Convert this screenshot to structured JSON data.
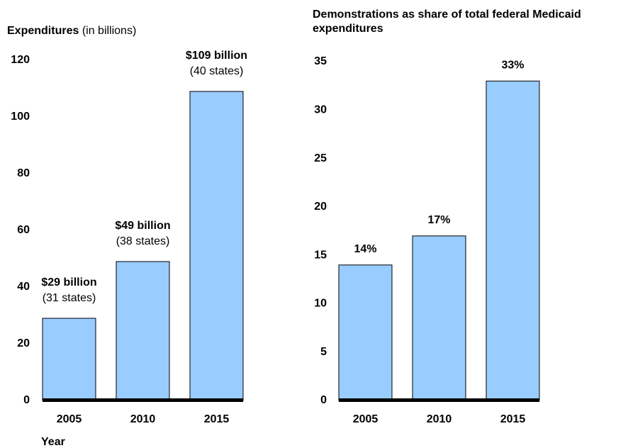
{
  "chart_data": [
    {
      "type": "bar",
      "title": "Expenditures",
      "subtitle": "(in billions)",
      "x_label": "Year",
      "categories": [
        "2005",
        "2010",
        "2015"
      ],
      "values": [
        29,
        49,
        109
      ],
      "value_labels": [
        "$29 billion",
        "$49 billion",
        "$109 billion"
      ],
      "annotations": [
        "(31 states)",
        "(38 states)",
        "(40 states)"
      ],
      "color": "#99ccff",
      "ylim": [
        0,
        120
      ],
      "yticks": [
        0,
        20,
        40,
        60,
        80,
        100,
        120
      ],
      "grid": false
    },
    {
      "type": "bar",
      "title": "Demonstrations as share of total federal Medicaid expenditures",
      "categories": [
        "2005",
        "2010",
        "2015"
      ],
      "values": [
        14,
        17,
        33
      ],
      "value_labels": [
        "14%",
        "17%",
        "33%"
      ],
      "color": "#99ccff",
      "ylim": [
        0,
        35
      ],
      "yticks": [
        0,
        5,
        10,
        15,
        20,
        25,
        30,
        35
      ],
      "grid": false
    }
  ]
}
